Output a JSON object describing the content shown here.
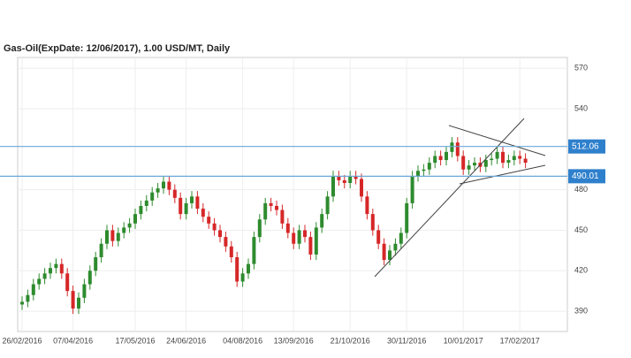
{
  "chart_data": {
    "type": "candlestick",
    "title": "Gas-Oil(ExpDate: 12/06/2017), 1.00 USD/MT, Daily",
    "categories": [
      "26/02/2016",
      null,
      null,
      null,
      null,
      null,
      null,
      null,
      null,
      "07/04/2016",
      null,
      null,
      null,
      null,
      null,
      null,
      null,
      null,
      null,
      null,
      "17/05/2016",
      null,
      null,
      null,
      null,
      null,
      null,
      null,
      null,
      "24/06/2016",
      null,
      null,
      null,
      null,
      null,
      null,
      null,
      null,
      null,
      "04/08/2016",
      null,
      null,
      null,
      null,
      null,
      null,
      null,
      null,
      "13/09/2016",
      null,
      null,
      null,
      null,
      null,
      null,
      null,
      null,
      null,
      "21/10/2016",
      null,
      null,
      null,
      null,
      null,
      null,
      null,
      null,
      null,
      "30/11/2016",
      null,
      null,
      null,
      null,
      null,
      null,
      null,
      null,
      null,
      "10/01/2017",
      null,
      null,
      null,
      null,
      null,
      null,
      null,
      null,
      null,
      "17/02/2017",
      null
    ],
    "open": [
      395,
      397,
      402,
      410,
      414,
      418,
      422,
      425,
      418,
      405,
      392,
      400,
      410,
      420,
      430,
      440,
      450,
      442,
      448,
      452,
      455,
      462,
      468,
      472,
      478,
      481,
      486,
      480,
      474,
      462,
      470,
      475,
      466,
      460,
      455,
      450,
      445,
      438,
      430,
      412,
      418,
      425,
      445,
      458,
      470,
      468,
      465,
      455,
      448,
      440,
      450,
      445,
      432,
      452,
      462,
      475,
      490,
      487,
      485,
      490,
      488,
      475,
      462,
      450,
      440,
      428,
      435,
      440,
      448,
      470,
      490,
      494,
      495,
      500,
      505,
      502,
      508,
      515,
      505,
      495,
      498,
      500,
      497,
      502,
      503,
      508,
      500,
      502,
      505,
      503
    ],
    "high": [
      401,
      406,
      414,
      418,
      422,
      426,
      429,
      429,
      422,
      409,
      404,
      414,
      424,
      434,
      444,
      454,
      454,
      452,
      456,
      459,
      466,
      472,
      476,
      482,
      485,
      490,
      490,
      484,
      478,
      474,
      479,
      479,
      470,
      464,
      459,
      454,
      449,
      442,
      434,
      422,
      429,
      449,
      462,
      474,
      474,
      472,
      469,
      459,
      452,
      454,
      454,
      449,
      456,
      466,
      479,
      494,
      494,
      491,
      494,
      494,
      492,
      479,
      466,
      454,
      444,
      439,
      444,
      452,
      474,
      494,
      498,
      499,
      504,
      509,
      509,
      512,
      519,
      519,
      509,
      502,
      504,
      504,
      506,
      507,
      512,
      512,
      506,
      509,
      509,
      507
    ],
    "low": [
      391,
      393,
      398,
      406,
      410,
      414,
      418,
      414,
      401,
      388,
      388,
      396,
      406,
      416,
      426,
      436,
      438,
      438,
      444,
      448,
      451,
      458,
      464,
      468,
      474,
      477,
      476,
      470,
      458,
      458,
      466,
      462,
      456,
      451,
      446,
      441,
      434,
      426,
      408,
      408,
      414,
      421,
      441,
      454,
      464,
      461,
      451,
      444,
      436,
      436,
      441,
      428,
      428,
      448,
      458,
      471,
      483,
      481,
      481,
      484,
      471,
      458,
      446,
      436,
      424,
      424,
      431,
      436,
      444,
      466,
      486,
      490,
      491,
      496,
      498,
      498,
      504,
      501,
      491,
      491,
      494,
      493,
      493,
      498,
      499,
      496,
      496,
      498,
      499,
      496
    ],
    "close": [
      397,
      402,
      410,
      414,
      418,
      422,
      425,
      418,
      405,
      392,
      400,
      410,
      420,
      430,
      440,
      450,
      442,
      448,
      452,
      455,
      462,
      468,
      472,
      478,
      481,
      486,
      480,
      474,
      462,
      470,
      475,
      466,
      460,
      455,
      450,
      445,
      438,
      430,
      412,
      418,
      425,
      445,
      458,
      470,
      468,
      465,
      455,
      448,
      440,
      450,
      445,
      432,
      452,
      462,
      475,
      490,
      487,
      485,
      490,
      488,
      475,
      462,
      450,
      440,
      428,
      435,
      440,
      448,
      470,
      490,
      494,
      495,
      500,
      505,
      502,
      508,
      515,
      505,
      495,
      498,
      500,
      497,
      502,
      503,
      508,
      500,
      502,
      505,
      503,
      500
    ],
    "up_color": "#2e8b2e",
    "down_color": "#d62728",
    "levels": [
      512.06,
      490.01
    ],
    "level_color": "#6aa8d8",
    "level_label_color": "#2f80cc",
    "ylim": [
      375,
      578
    ],
    "yticks": [
      390,
      420,
      450,
      480,
      540,
      570
    ],
    "grid": true
  }
}
